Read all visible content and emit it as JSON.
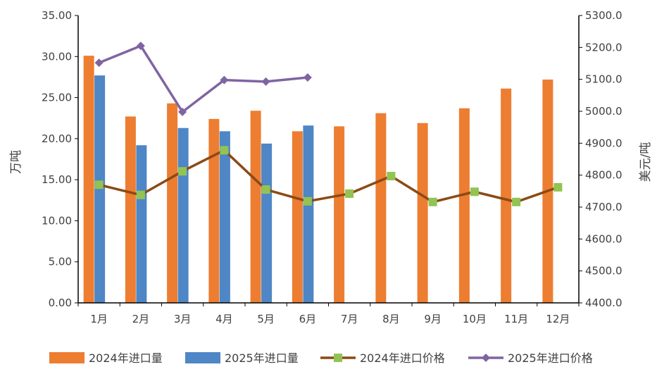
{
  "chart_data": {
    "type": "bar+line",
    "categories": [
      "1月",
      "2月",
      "3月",
      "4月",
      "5月",
      "6月",
      "7月",
      "8月",
      "9月",
      "10月",
      "11月",
      "12月"
    ],
    "left_axis": {
      "label": "万吨",
      "ylim": [
        0,
        35
      ],
      "ticks": [
        "0.00",
        "5.00",
        "10.00",
        "15.00",
        "20.00",
        "25.00",
        "30.00",
        "35.00"
      ]
    },
    "right_axis": {
      "label": "美元/吨",
      "ylim": [
        4400,
        5300
      ],
      "ticks": [
        "4400.0",
        "4500.0",
        "4600.0",
        "4700.0",
        "4800.0",
        "4900.0",
        "5000.0",
        "5100.0",
        "5200.0",
        "5300.0"
      ]
    },
    "bar_series": [
      {
        "name": "2024年进口量",
        "color": "#ED7D31",
        "values": [
          30.1,
          22.7,
          24.3,
          22.4,
          23.4,
          20.9,
          21.5,
          23.1,
          21.9,
          23.7,
          26.1,
          27.2
        ]
      },
      {
        "name": "2025年进口量",
        "color": "#4E86C6",
        "values": [
          27.7,
          19.2,
          21.3,
          20.9,
          19.4,
          21.6,
          null,
          null,
          null,
          null,
          null,
          null
        ]
      }
    ],
    "line_series": [
      {
        "name": "2024年进口价格",
        "color": "#8C4A14",
        "marker": "square",
        "marker_color": "#92C353",
        "values": [
          4770,
          4738,
          4812,
          4878,
          4755,
          4718,
          4742,
          4797,
          4716,
          4748,
          4716,
          4762
        ]
      },
      {
        "name": "2025年进口价格",
        "color": "#8064A2",
        "marker": "diamond",
        "values": [
          5152,
          5205,
          4998,
          5098,
          5093,
          5106,
          null,
          null,
          null,
          null,
          null,
          null
        ]
      }
    ],
    "legend_position": "bottom",
    "grid": false
  }
}
